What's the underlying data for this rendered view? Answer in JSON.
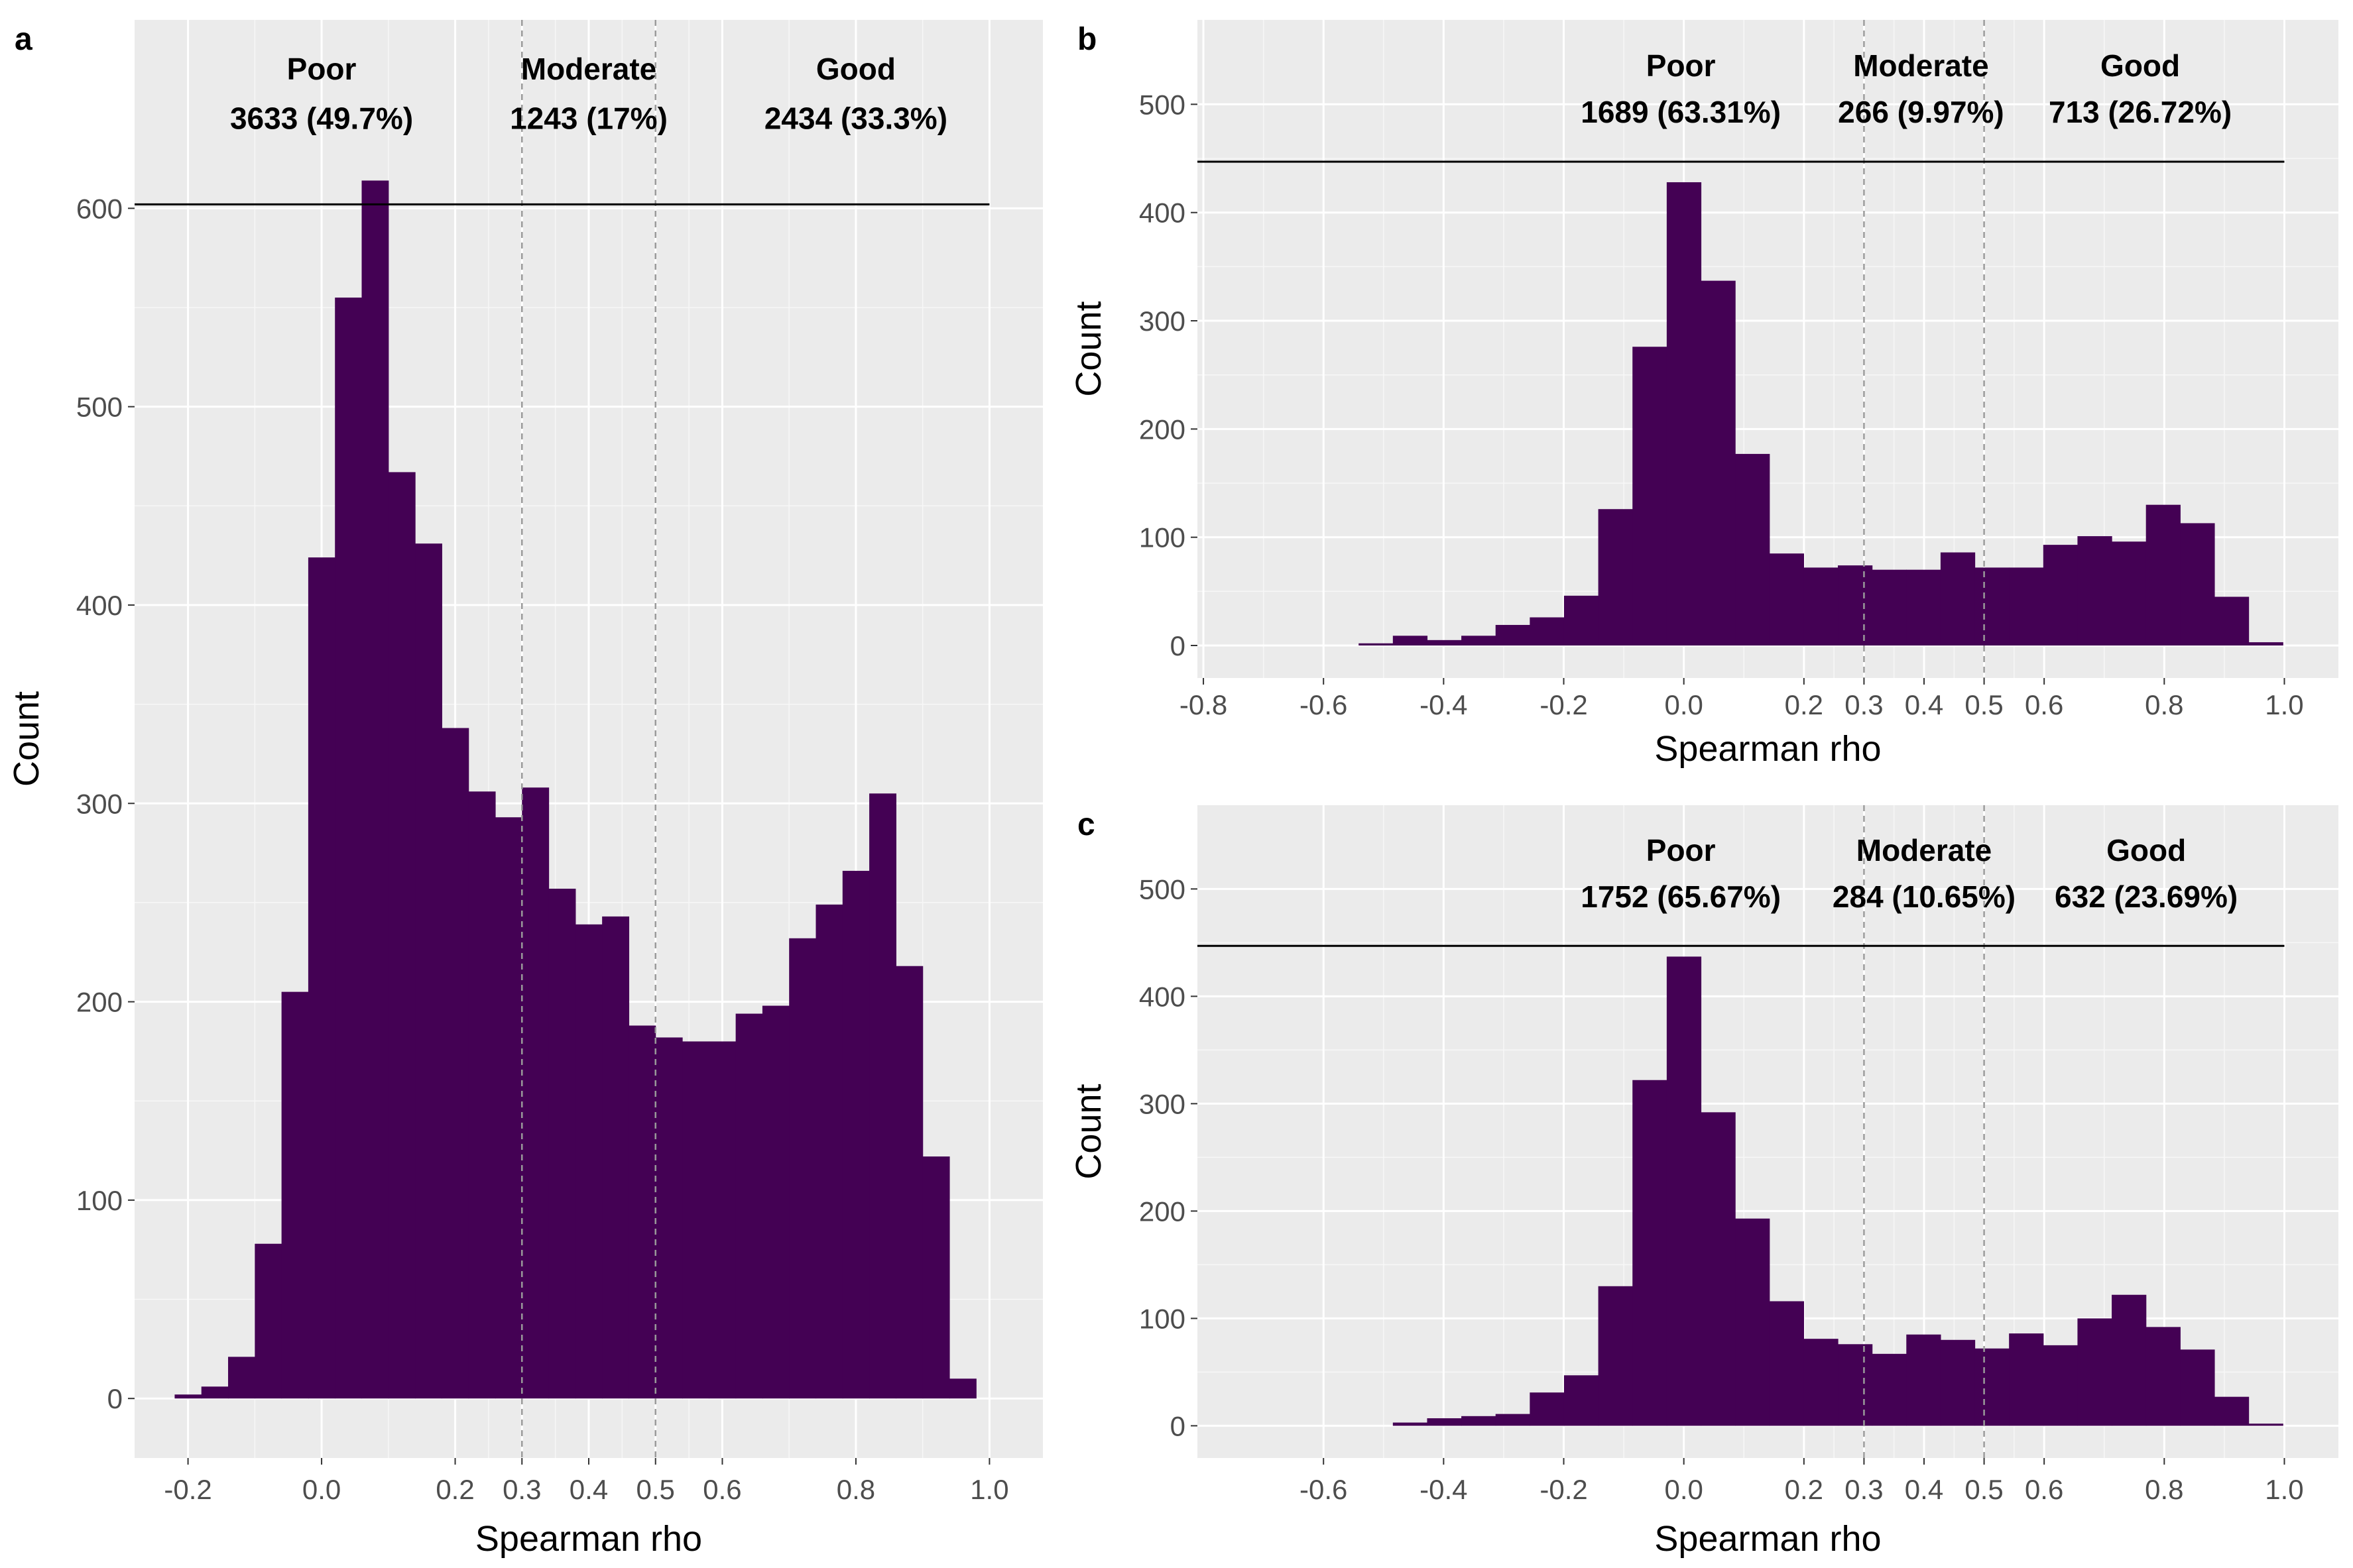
{
  "chart_data": [
    {
      "panel": "a",
      "type": "bar",
      "xlabel": "Spearman rho",
      "ylabel": "Count",
      "xlim": [
        -0.28,
        1.08
      ],
      "ylim": [
        -30,
        695
      ],
      "bin_width": 0.04,
      "x_ticks": [
        -0.2,
        0.0,
        0.2,
        0.3,
        0.4,
        0.5,
        0.6,
        0.8,
        1.0
      ],
      "x_tick_labels": [
        "-0.2",
        "0.0",
        "0.2",
        "0.3",
        "0.4",
        "0.5",
        "0.6",
        "0.8",
        "1.0"
      ],
      "y_ticks": [
        0,
        100,
        200,
        300,
        400,
        500,
        600
      ],
      "y_tick_labels": [
        "0",
        "100",
        "200",
        "300",
        "400",
        "500",
        "600"
      ],
      "bin_centers": [
        -0.2,
        -0.16,
        -0.12,
        -0.08,
        -0.04,
        0.0,
        0.04,
        0.08,
        0.12,
        0.16,
        0.2,
        0.24,
        0.28,
        0.32,
        0.36,
        0.4,
        0.44,
        0.48,
        0.52,
        0.56,
        0.6,
        0.64,
        0.68,
        0.72,
        0.76,
        0.8,
        0.84,
        0.88,
        0.92,
        0.96,
        1.0
      ],
      "counts": [
        2,
        6,
        21,
        78,
        205,
        424,
        555,
        614,
        467,
        431,
        338,
        306,
        293,
        308,
        257,
        239,
        243,
        188,
        182,
        180,
        180,
        194,
        198,
        232,
        249,
        266,
        305,
        218,
        122,
        10,
        0
      ],
      "thresholds": [
        0.3,
        0.5
      ],
      "separator_y": 602,
      "separator_xrange": [
        -0.3,
        1.0
      ],
      "categories": [
        {
          "name": "Poor",
          "count_label": "3633 (49.7%)",
          "x": 0.0
        },
        {
          "name": "Moderate",
          "count_label": "1243 (17%)",
          "x": 0.4
        },
        {
          "name": "Good",
          "count_label": "2434 (33.3%)",
          "x": 0.8
        }
      ],
      "label_y": [
        665,
        640
      ]
    },
    {
      "panel": "b",
      "type": "bar",
      "xlabel": "Spearman rho",
      "ylabel": "Count",
      "xlim": [
        -0.81,
        1.09
      ],
      "ylim": [
        -30,
        578
      ],
      "bin_width": 0.057,
      "x_ticks": [
        -0.8,
        -0.6,
        -0.4,
        -0.2,
        0.0,
        0.2,
        0.3,
        0.4,
        0.5,
        0.6,
        0.8,
        1.0
      ],
      "x_tick_labels": [
        "-0.8",
        "-0.6",
        "-0.4",
        "-0.2",
        "0.0",
        "0.2",
        "0.3",
        "0.4",
        "0.5",
        "0.6",
        "0.8",
        "1.0"
      ],
      "y_ticks": [
        0,
        100,
        200,
        300,
        400,
        500
      ],
      "y_tick_labels": [
        "0",
        "100",
        "200",
        "300",
        "400",
        "500"
      ],
      "bin_centers": [
        -0.513,
        -0.456,
        -0.399,
        -0.342,
        -0.285,
        -0.228,
        -0.171,
        -0.114,
        -0.057,
        0.0,
        0.057,
        0.114,
        0.171,
        0.228,
        0.285,
        0.342,
        0.399,
        0.456,
        0.513,
        0.57,
        0.627,
        0.684,
        0.741,
        0.798,
        0.855,
        0.912,
        0.969
      ],
      "counts": [
        2,
        9,
        5,
        9,
        19,
        26,
        46,
        126,
        276,
        428,
        337,
        177,
        85,
        72,
        74,
        70,
        70,
        86,
        72,
        72,
        93,
        101,
        96,
        130,
        113,
        45,
        3
      ],
      "thresholds": [
        0.3,
        0.5
      ],
      "separator_y": 447,
      "separator_xrange": [
        -0.83,
        1.0
      ],
      "categories": [
        {
          "name": "Poor",
          "count_label": "1689 (63.31%)",
          "x": -0.005
        },
        {
          "name": "Moderate",
          "count_label": "266 (9.97%)",
          "x": 0.395
        },
        {
          "name": "Good",
          "count_label": "713 (26.72%)",
          "x": 0.76
        }
      ],
      "label_y": [
        526,
        483
      ]
    },
    {
      "panel": "c",
      "type": "bar",
      "xlabel": "Spearman rho",
      "ylabel": "Count",
      "xlim": [
        -0.81,
        1.09
      ],
      "ylim": [
        -30,
        578
      ],
      "bin_width": 0.057,
      "x_ticks": [
        -0.6,
        -0.4,
        -0.2,
        0.0,
        0.2,
        0.3,
        0.4,
        0.5,
        0.6,
        0.8,
        1.0
      ],
      "x_tick_labels": [
        "-0.6",
        "-0.4",
        "-0.2",
        "0.0",
        "0.2",
        "0.3",
        "0.4",
        "0.5",
        "0.6",
        "0.8",
        "1.0"
      ],
      "y_ticks": [
        0,
        100,
        200,
        300,
        400,
        500
      ],
      "y_tick_labels": [
        "0",
        "100",
        "200",
        "300",
        "400",
        "500"
      ],
      "bin_centers": [
        -0.456,
        -0.399,
        -0.342,
        -0.285,
        -0.228,
        -0.171,
        -0.114,
        -0.057,
        0.0,
        0.057,
        0.114,
        0.171,
        0.228,
        0.285,
        0.342,
        0.399,
        0.456,
        0.513,
        0.57,
        0.627,
        0.684,
        0.741,
        0.798,
        0.855,
        0.912,
        0.969
      ],
      "counts": [
        3,
        7,
        9,
        11,
        31,
        47,
        130,
        322,
        437,
        292,
        193,
        116,
        81,
        76,
        67,
        85,
        80,
        72,
        86,
        75,
        100,
        122,
        92,
        71,
        27,
        2
      ],
      "thresholds": [
        0.3,
        0.5
      ],
      "separator_y": 447,
      "separator_xrange": [
        -0.83,
        1.0
      ],
      "categories": [
        {
          "name": "Poor",
          "count_label": "1752 (65.67%)",
          "x": -0.005
        },
        {
          "name": "Moderate",
          "count_label": "284 (10.65%)",
          "x": 0.4
        },
        {
          "name": "Good",
          "count_label": "632 (23.69%)",
          "x": 0.77
        }
      ],
      "label_y": [
        526,
        483
      ]
    }
  ]
}
